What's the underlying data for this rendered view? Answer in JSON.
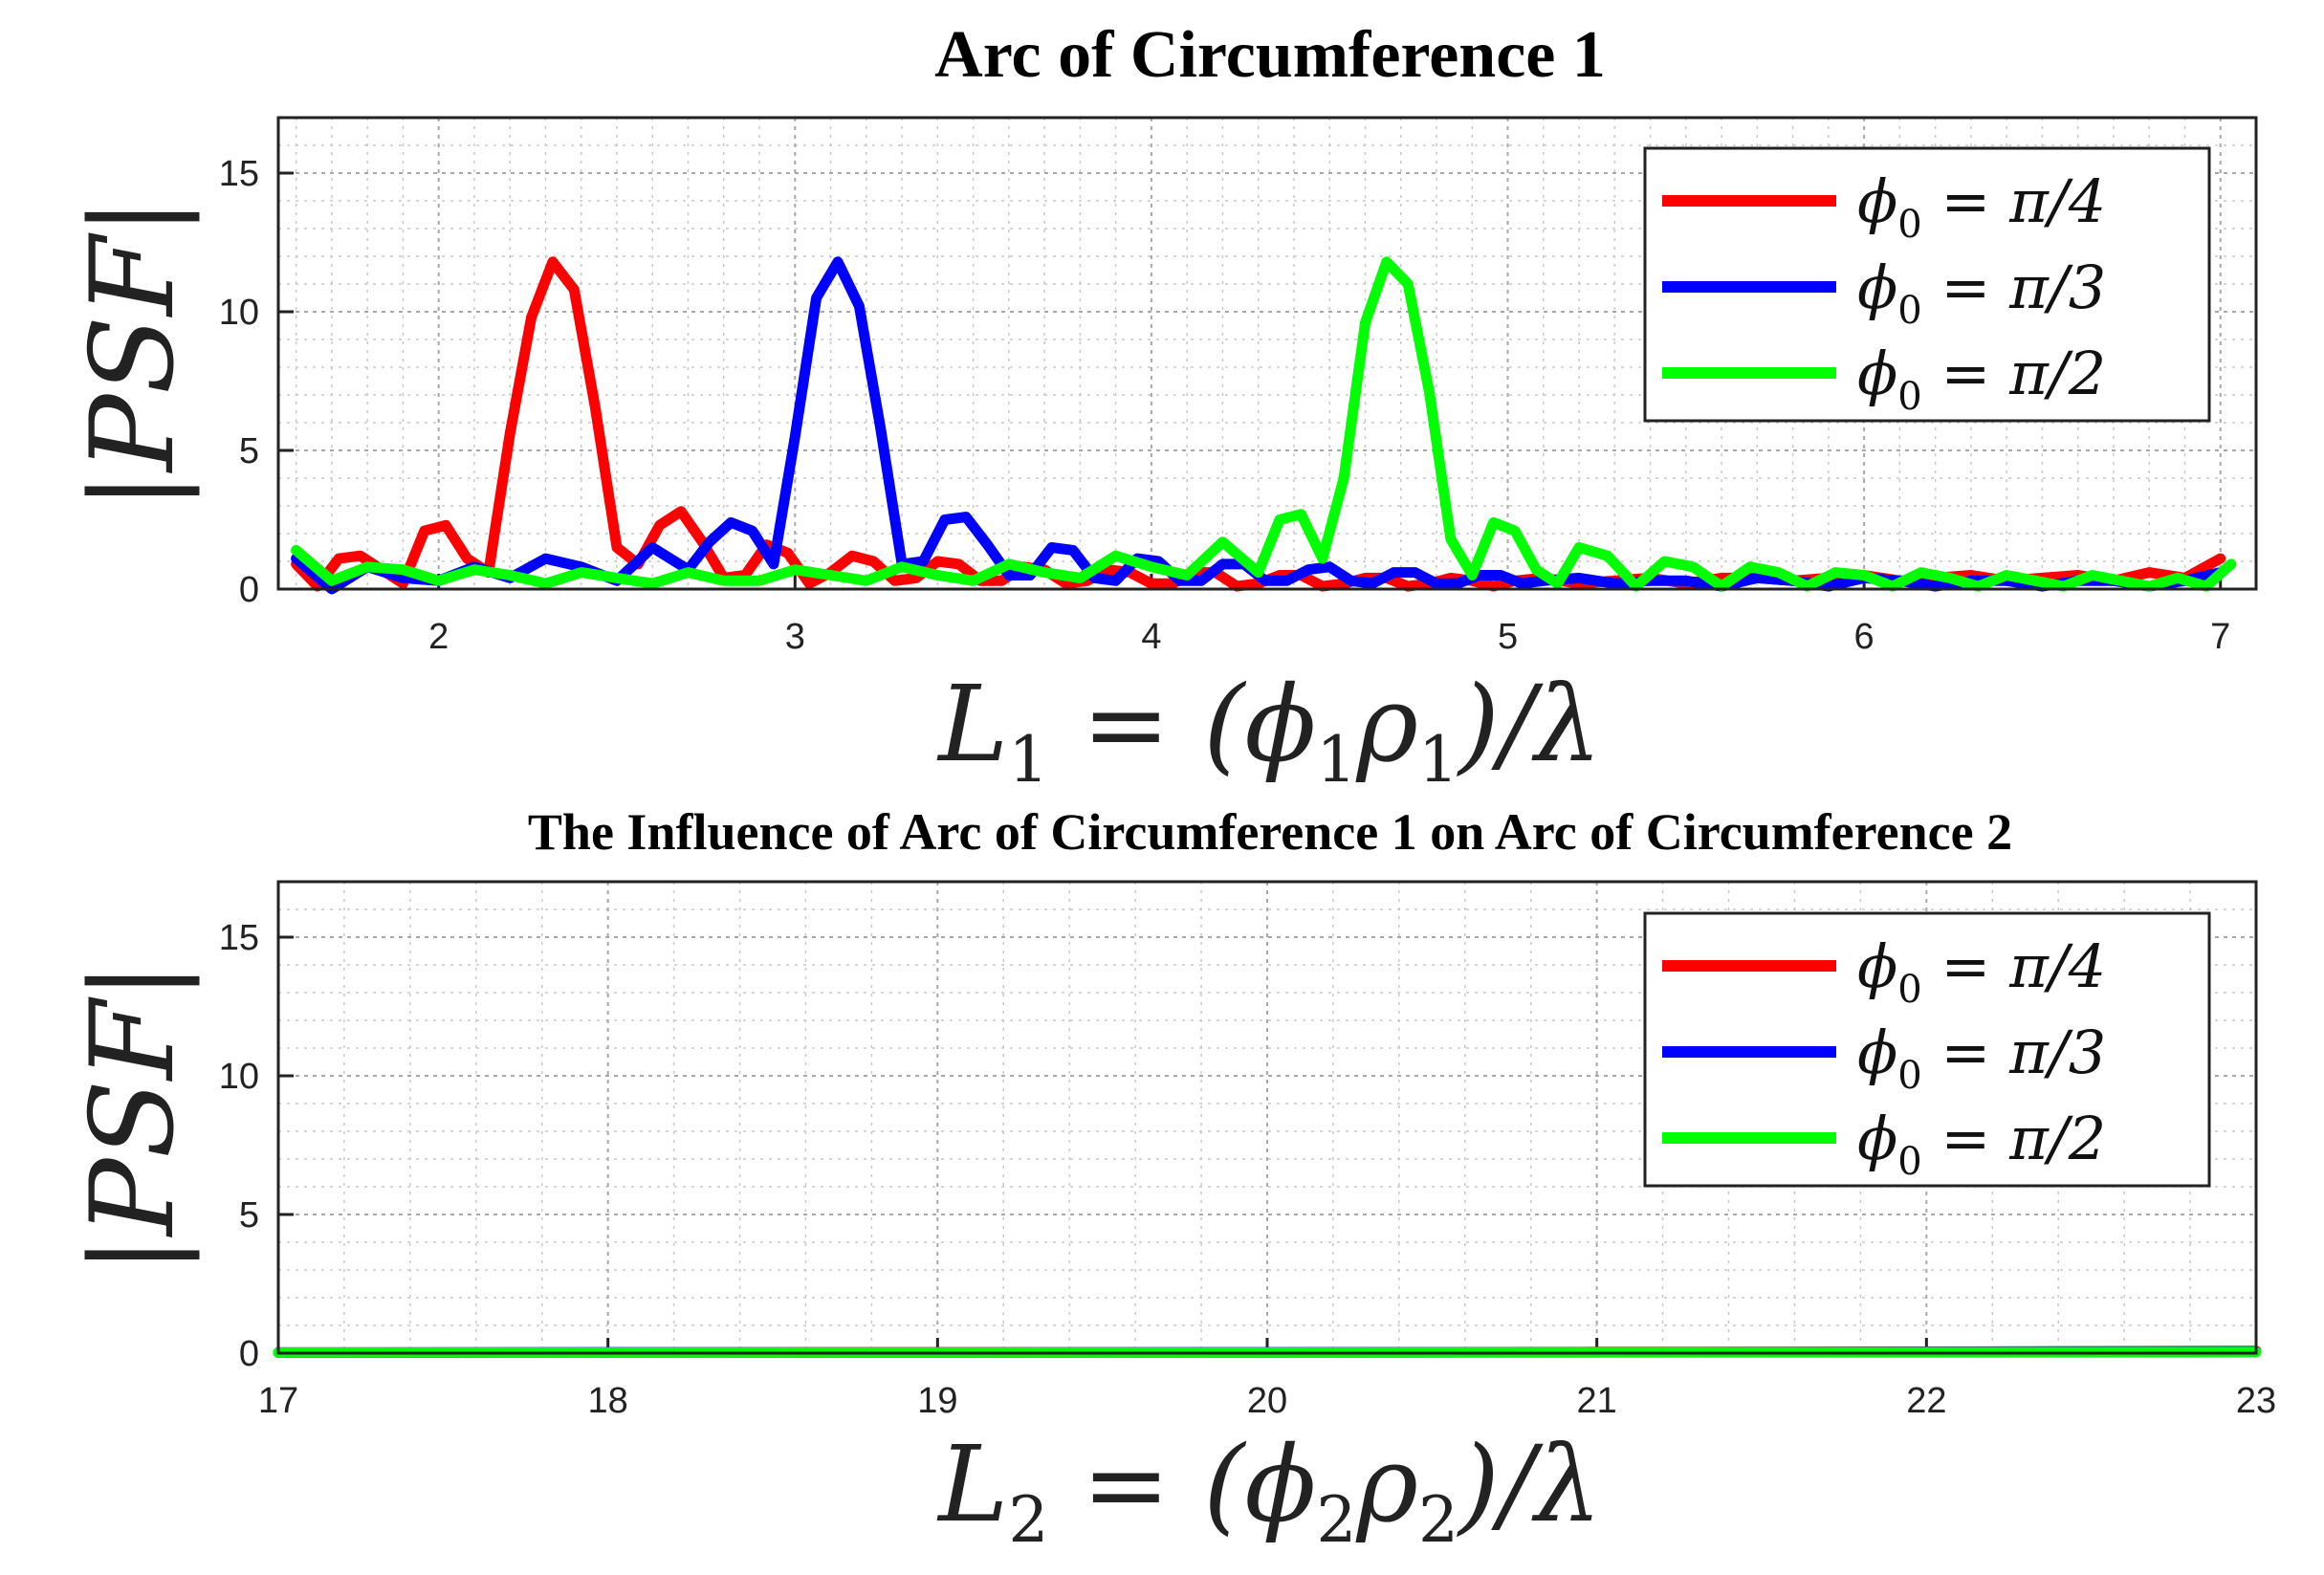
{
  "chart_data": [
    {
      "type": "line",
      "title": "Arc of Circumference 1",
      "xlabel": "L₁ = (ϕ₁ρ₁)/λ",
      "ylabel": "|PSF|",
      "xlim": [
        1.55,
        7.1
      ],
      "ylim": [
        0,
        17
      ],
      "xticks": [
        2,
        3,
        4,
        5,
        6,
        7
      ],
      "yticks": [
        0,
        5,
        10,
        15
      ],
      "grid": true,
      "legend": "top-right",
      "series": [
        {
          "name": "ϕ₀ = π/4",
          "color": "#ff0000",
          "x": [
            1.6,
            1.66,
            1.72,
            1.78,
            1.84,
            1.9,
            1.96,
            2.02,
            2.08,
            2.14,
            2.2,
            2.26,
            2.32,
            2.38,
            2.44,
            2.5,
            2.56,
            2.62,
            2.68,
            2.74,
            2.8,
            2.86,
            2.92,
            2.98,
            3.04,
            3.1,
            3.16,
            3.22,
            3.28,
            3.34,
            3.4,
            3.46,
            3.52,
            3.58,
            3.64,
            3.7,
            3.76,
            3.82,
            3.88,
            3.94,
            4.0,
            4.06,
            4.12,
            4.18,
            4.24,
            4.3,
            4.36,
            4.42,
            4.48,
            4.54,
            4.6,
            4.66,
            4.72,
            4.78,
            4.84,
            4.9,
            4.96,
            5.02,
            5.1,
            5.2,
            5.3,
            5.4,
            5.5,
            5.6,
            5.7,
            5.8,
            5.9,
            6.0,
            6.1,
            6.2,
            6.3,
            6.4,
            6.5,
            6.6,
            6.7,
            6.8,
            6.9,
            7.0
          ],
          "values": [
            0.9,
            0.1,
            1.1,
            1.2,
            0.7,
            0.2,
            2.1,
            2.3,
            1.1,
            0.6,
            5.6,
            9.8,
            11.8,
            10.8,
            6.5,
            1.5,
            0.9,
            2.3,
            2.8,
            1.7,
            0.4,
            0.5,
            1.6,
            1.3,
            0.2,
            0.6,
            1.2,
            1.0,
            0.3,
            0.4,
            1.0,
            0.9,
            0.3,
            0.3,
            0.8,
            0.7,
            0.2,
            0.3,
            0.7,
            0.6,
            0.2,
            0.2,
            0.6,
            0.6,
            0.1,
            0.2,
            0.5,
            0.5,
            0.1,
            0.2,
            0.4,
            0.4,
            0.1,
            0.2,
            0.4,
            0.3,
            0.1,
            0.3,
            0.4,
            0.2,
            0.3,
            0.4,
            0.2,
            0.4,
            0.4,
            0.3,
            0.4,
            0.5,
            0.3,
            0.4,
            0.5,
            0.3,
            0.4,
            0.5,
            0.3,
            0.6,
            0.4,
            1.1
          ]
        },
        {
          "name": "ϕ₀ = π/3",
          "color": "#0000ff",
          "x": [
            1.6,
            1.7,
            1.8,
            1.9,
            2.0,
            2.1,
            2.2,
            2.3,
            2.4,
            2.5,
            2.6,
            2.7,
            2.76,
            2.82,
            2.88,
            2.94,
            3.0,
            3.06,
            3.12,
            3.18,
            3.24,
            3.3,
            3.36,
            3.42,
            3.48,
            3.54,
            3.6,
            3.66,
            3.72,
            3.78,
            3.84,
            3.9,
            3.96,
            4.02,
            4.08,
            4.14,
            4.2,
            4.26,
            4.32,
            4.38,
            4.44,
            4.5,
            4.56,
            4.62,
            4.68,
            4.74,
            4.8,
            4.86,
            4.92,
            4.98,
            5.04,
            5.1,
            5.2,
            5.3,
            5.4,
            5.5,
            5.6,
            5.7,
            5.8,
            5.9,
            6.0,
            6.1,
            6.2,
            6.3,
            6.4,
            6.5,
            6.6,
            6.7,
            6.8,
            6.9,
            7.0
          ],
          "values": [
            1.1,
            0.0,
            0.8,
            0.4,
            0.3,
            0.8,
            0.4,
            1.1,
            0.8,
            0.3,
            1.5,
            0.7,
            1.7,
            2.4,
            2.1,
            0.9,
            5.5,
            10.5,
            11.8,
            10.2,
            5.8,
            0.9,
            1.0,
            2.5,
            2.6,
            1.6,
            0.5,
            0.5,
            1.5,
            1.4,
            0.4,
            0.3,
            1.1,
            1.0,
            0.3,
            0.3,
            0.9,
            0.9,
            0.3,
            0.3,
            0.7,
            0.8,
            0.3,
            0.2,
            0.6,
            0.6,
            0.2,
            0.2,
            0.5,
            0.5,
            0.2,
            0.3,
            0.4,
            0.2,
            0.3,
            0.3,
            0.1,
            0.4,
            0.3,
            0.1,
            0.4,
            0.3,
            0.1,
            0.3,
            0.3,
            0.1,
            0.3,
            0.3,
            0.1,
            0.3,
            0.6
          ]
        },
        {
          "name": "ϕ₀ = π/2",
          "color": "#00ff00",
          "x": [
            1.6,
            1.7,
            1.8,
            1.9,
            2.0,
            2.1,
            2.2,
            2.3,
            2.4,
            2.5,
            2.6,
            2.7,
            2.8,
            2.9,
            3.0,
            3.1,
            3.2,
            3.3,
            3.4,
            3.5,
            3.6,
            3.7,
            3.8,
            3.9,
            4.0,
            4.1,
            4.2,
            4.3,
            4.36,
            4.42,
            4.48,
            4.54,
            4.6,
            4.66,
            4.72,
            4.78,
            4.84,
            4.9,
            4.96,
            5.02,
            5.08,
            5.14,
            5.2,
            5.28,
            5.36,
            5.44,
            5.52,
            5.6,
            5.68,
            5.76,
            5.84,
            5.92,
            6.0,
            6.08,
            6.16,
            6.24,
            6.32,
            6.4,
            6.48,
            6.56,
            6.64,
            6.72,
            6.8,
            6.88,
            6.96,
            7.03
          ],
          "values": [
            1.4,
            0.3,
            0.8,
            0.7,
            0.3,
            0.7,
            0.5,
            0.2,
            0.6,
            0.4,
            0.2,
            0.6,
            0.3,
            0.3,
            0.7,
            0.5,
            0.3,
            0.8,
            0.5,
            0.3,
            0.9,
            0.6,
            0.4,
            1.2,
            0.8,
            0.5,
            1.7,
            0.6,
            2.5,
            2.7,
            1.1,
            4.0,
            9.6,
            11.8,
            11.0,
            7.1,
            1.8,
            0.5,
            2.4,
            2.1,
            0.7,
            0.2,
            1.5,
            1.2,
            0.1,
            1.0,
            0.8,
            0.1,
            0.8,
            0.6,
            0.1,
            0.6,
            0.5,
            0.1,
            0.6,
            0.4,
            0.1,
            0.5,
            0.3,
            0.1,
            0.5,
            0.3,
            0.1,
            0.4,
            0.1,
            0.9
          ]
        }
      ]
    },
    {
      "type": "line",
      "title": "The Influence of Arc of Circumference 1 on Arc of Circumference 2",
      "xlabel": "L₂ = (ϕ₂ρ₂)/λ",
      "ylabel": "|PSF|",
      "xlim": [
        17,
        23
      ],
      "ylim": [
        0,
        17
      ],
      "xticks": [
        17,
        18,
        19,
        20,
        21,
        22,
        23
      ],
      "yticks": [
        0,
        5,
        10,
        15
      ],
      "grid": true,
      "legend": "top-right",
      "series": [
        {
          "name": "ϕ₀ = π/4",
          "color": "#ff0000",
          "x": [
            17,
            18,
            19,
            20,
            21,
            22,
            23
          ],
          "values": [
            0.02,
            0.02,
            0.03,
            0.02,
            0.04,
            0.05,
            0.08
          ]
        },
        {
          "name": "ϕ₀ = π/3",
          "color": "#0000ff",
          "x": [
            17,
            18,
            19,
            20,
            21,
            22,
            23
          ],
          "values": [
            0.02,
            0.03,
            0.02,
            0.03,
            0.03,
            0.04,
            0.05
          ]
        },
        {
          "name": "ϕ₀ = π/2",
          "color": "#00ff00",
          "x": [
            17,
            18,
            19,
            20,
            21,
            22,
            23
          ],
          "values": [
            0.02,
            0.02,
            0.02,
            0.02,
            0.03,
            0.03,
            0.04
          ]
        }
      ]
    }
  ],
  "legend_parts": {
    "lhs": "ϕ",
    "sub": "0"
  },
  "axis_labels": {
    "top_x": {
      "L": "L",
      "sub": "1",
      "mid": " = (ϕ",
      "rho": "ρ",
      "end": ")/λ"
    },
    "bottom_x": {
      "L": "L",
      "sub": "2",
      "mid": " = (ϕ",
      "rho": "ρ",
      "end": ")/λ"
    }
  },
  "colors": {
    "red": "#ff0000",
    "blue": "#0000ff",
    "green": "#00ff00"
  }
}
